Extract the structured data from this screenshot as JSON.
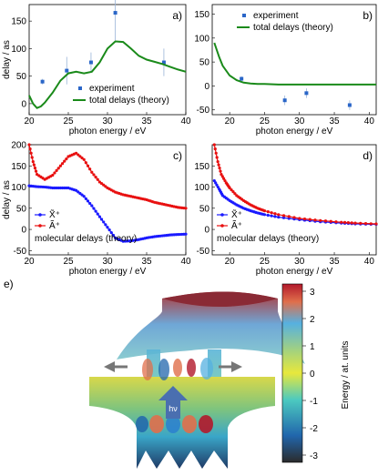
{
  "chart_data": [
    {
      "panel": "a)",
      "type": "line",
      "xlim": [
        20,
        40
      ],
      "ylim": [
        -20,
        180
      ],
      "xticks": [
        20,
        25,
        30,
        35,
        40
      ],
      "yticks": [
        0,
        50,
        100,
        150
      ],
      "xlabel": "photon energy / eV",
      "ylabel": "delay / as",
      "legend": [
        "experiment",
        "total delays (theory)"
      ],
      "legend_position": "bottom-center",
      "series": [
        {
          "name": "experiment",
          "kind": "points",
          "x": [
            21.7,
            24.8,
            27.9,
            31.0,
            37.2
          ],
          "y": [
            40,
            60,
            75,
            165,
            75
          ],
          "err": [
            5,
            25,
            18,
            50,
            25
          ]
        },
        {
          "name": "total delays (theory)",
          "kind": "line",
          "x": [
            20,
            20.5,
            21,
            21.5,
            22,
            23,
            24,
            25,
            26,
            27,
            28,
            29,
            30,
            31,
            32,
            33,
            34,
            35,
            36,
            37,
            38,
            39,
            40
          ],
          "y": [
            15,
            0,
            -8,
            -5,
            2,
            20,
            42,
            55,
            58,
            55,
            58,
            75,
            100,
            113,
            112,
            100,
            87,
            80,
            76,
            72,
            67,
            62,
            58
          ]
        }
      ]
    },
    {
      "panel": "b)",
      "type": "line",
      "xlim": [
        17.5,
        41
      ],
      "ylim": [
        -60,
        170
      ],
      "xticks": [
        20,
        25,
        30,
        35,
        40
      ],
      "yticks": [
        -50,
        0,
        50,
        100,
        150
      ],
      "xlabel": "photon energy / eV",
      "ylabel": "",
      "legend": [
        "experiment",
        "total delays (theory)"
      ],
      "legend_position": "top-center",
      "series": [
        {
          "name": "experiment",
          "kind": "points",
          "x": [
            21.7,
            27.9,
            31.0,
            37.2
          ],
          "y": [
            15,
            -30,
            -15,
            -40
          ],
          "err": [
            5,
            10,
            10,
            10
          ]
        },
        {
          "name": "total delays (theory)",
          "kind": "line",
          "x": [
            17.8,
            18.5,
            19,
            20,
            21,
            22,
            23,
            24,
            25,
            27,
            30,
            35,
            40,
            41
          ],
          "y": [
            90,
            60,
            42,
            22,
            12,
            7,
            5,
            4,
            4,
            3,
            3,
            3,
            3,
            3
          ]
        }
      ]
    },
    {
      "panel": "c)",
      "type": "line",
      "xlim": [
        20,
        40
      ],
      "ylim": [
        -60,
        200
      ],
      "xticks": [
        20,
        25,
        30,
        35,
        40
      ],
      "yticks": [
        -50,
        0,
        50,
        100,
        150,
        200
      ],
      "xlabel": "photon energy / eV",
      "ylabel": "delay / as",
      "legend": [
        "X̃⁺",
        "Ã⁺"
      ],
      "annotation": "molecular delays (theory)",
      "series": [
        {
          "name": "X̃⁺",
          "color": "#1a1aff",
          "x": [
            20,
            21,
            22,
            23,
            24,
            25,
            26,
            27,
            28,
            29,
            30,
            31,
            32,
            33,
            34,
            35,
            36,
            37,
            38,
            39,
            40
          ],
          "y": [
            103,
            101,
            100,
            98,
            98,
            98,
            92,
            78,
            56,
            30,
            5,
            -20,
            -28,
            -27,
            -24,
            -20,
            -17,
            -15,
            -13,
            -12,
            -11
          ]
        },
        {
          "name": "Ã⁺",
          "color": "#e81010",
          "x": [
            20,
            20.5,
            21,
            22,
            23,
            24,
            25,
            26,
            27,
            28,
            29,
            30,
            31,
            32,
            33,
            34,
            35,
            36,
            37,
            38,
            39,
            40
          ],
          "y": [
            200,
            160,
            130,
            118,
            128,
            150,
            172,
            180,
            165,
            135,
            112,
            98,
            88,
            82,
            78,
            74,
            70,
            64,
            60,
            56,
            52,
            50
          ]
        }
      ]
    },
    {
      "panel": "d)",
      "type": "line",
      "xlim": [
        17.5,
        41
      ],
      "ylim": [
        -60,
        200
      ],
      "xticks": [
        20,
        25,
        30,
        35,
        40
      ],
      "yticks": [
        -50,
        0,
        50,
        100,
        150
      ],
      "xlabel": "photon energy / eV",
      "ylabel": "",
      "legend": [
        "X̃⁺",
        "Ã⁺"
      ],
      "annotation": "molecular delays (theory)",
      "series": [
        {
          "name": "X̃⁺",
          "color": "#1a1aff",
          "x": [
            17.8,
            18.5,
            19,
            20,
            21,
            22,
            23,
            24,
            25,
            27,
            30,
            33,
            36,
            38,
            41
          ],
          "y": [
            115,
            95,
            80,
            68,
            58,
            50,
            44,
            39,
            35,
            29,
            23,
            18,
            15,
            13,
            12
          ]
        },
        {
          "name": "Ã⁺",
          "color": "#e81010",
          "x": [
            17.8,
            18.3,
            18.8,
            19.5,
            20,
            21,
            22,
            23,
            24,
            25,
            27,
            30,
            33,
            36,
            38,
            41
          ],
          "y": [
            200,
            160,
            130,
            110,
            98,
            80,
            68,
            58,
            50,
            44,
            35,
            26,
            21,
            17,
            15,
            13
          ]
        }
      ]
    }
  ],
  "panel_e": {
    "label": "e)",
    "colorbar_label": "Energy / at. units",
    "colorbar_ticks": [
      "3",
      "2",
      "1",
      "0",
      "-1",
      "-2",
      "-3"
    ],
    "atoms": [
      "O",
      "N",
      "N"
    ],
    "photon_label": "hν",
    "colors": {
      "red": "#b2182b",
      "blue": "#2166ac",
      "green": "#1a8a1a",
      "yellow": "#e8e83c"
    }
  }
}
